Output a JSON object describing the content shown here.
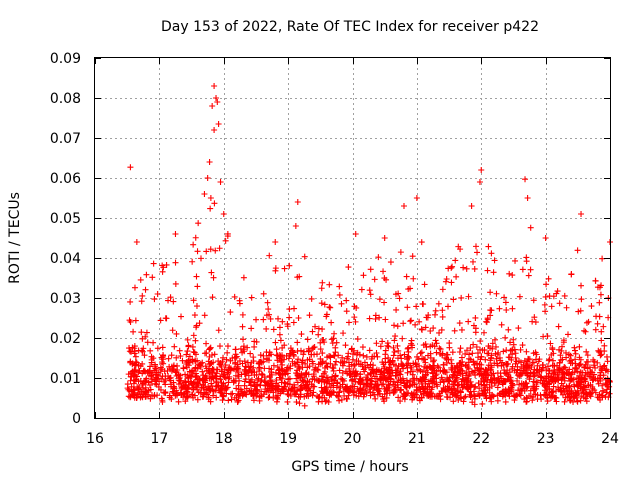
{
  "chart_data": {
    "type": "scatter",
    "title": "Day 153 of 2022, Rate Of TEC Index for receiver p422",
    "xlabel": "GPS time / hours",
    "ylabel": "ROTI / TECUs",
    "xlim": [
      16,
      24
    ],
    "ylim": [
      0,
      0.09
    ],
    "xticks": [
      "16",
      "17",
      "18",
      "19",
      "20",
      "21",
      "22",
      "23",
      "24"
    ],
    "xtick_values": [
      16,
      17,
      18,
      19,
      20,
      21,
      22,
      23,
      24
    ],
    "yticks": [
      "0",
      "0.01",
      "0.02",
      "0.03",
      "0.04",
      "0.05",
      "0.06",
      "0.07",
      "0.08",
      "0.09"
    ],
    "ytick_values": [
      0,
      0.01,
      0.02,
      0.03,
      0.04,
      0.05,
      0.06,
      0.07,
      0.08,
      0.09
    ],
    "grid": true,
    "marker": "+",
    "series": [
      {
        "name": "ROTI",
        "color": "#ff0000",
        "notable_points": [
          [
            16.55,
            0.0627
          ],
          [
            17.85,
            0.083
          ],
          [
            17.88,
            0.08
          ],
          [
            17.9,
            0.079
          ],
          [
            17.82,
            0.078
          ],
          [
            17.92,
            0.0735
          ],
          [
            17.85,
            0.072
          ],
          [
            17.78,
            0.064
          ],
          [
            17.75,
            0.06
          ],
          [
            17.7,
            0.056
          ],
          [
            17.8,
            0.055
          ],
          [
            17.95,
            0.059
          ],
          [
            18.0,
            0.051
          ],
          [
            19.15,
            0.054
          ],
          [
            19.12,
            0.048
          ],
          [
            21.0,
            0.055
          ],
          [
            21.85,
            0.053
          ],
          [
            22.0,
            0.062
          ],
          [
            21.98,
            0.059
          ],
          [
            22.68,
            0.0597
          ],
          [
            22.72,
            0.055
          ],
          [
            23.55,
            0.051
          ],
          [
            24.0,
            0.044
          ],
          [
            16.65,
            0.044
          ],
          [
            17.25,
            0.046
          ],
          [
            18.8,
            0.044
          ],
          [
            20.05,
            0.046
          ],
          [
            20.5,
            0.045
          ],
          [
            20.8,
            0.053
          ],
          [
            23.0,
            0.045
          ]
        ],
        "envelope": [
          [
            16.5,
            0.005,
            0.032
          ],
          [
            16.75,
            0.005,
            0.038
          ],
          [
            17.0,
            0.004,
            0.04
          ],
          [
            17.25,
            0.004,
            0.044
          ],
          [
            17.5,
            0.004,
            0.045
          ],
          [
            17.75,
            0.004,
            0.058
          ],
          [
            18.0,
            0.004,
            0.052
          ],
          [
            18.25,
            0.004,
            0.035
          ],
          [
            18.5,
            0.004,
            0.038
          ],
          [
            18.75,
            0.004,
            0.044
          ],
          [
            19.0,
            0.004,
            0.04
          ],
          [
            19.25,
            0.003,
            0.042
          ],
          [
            19.5,
            0.004,
            0.035
          ],
          [
            19.75,
            0.004,
            0.033
          ],
          [
            20.0,
            0.005,
            0.04
          ],
          [
            20.25,
            0.005,
            0.038
          ],
          [
            20.5,
            0.004,
            0.044
          ],
          [
            20.75,
            0.004,
            0.045
          ],
          [
            21.0,
            0.004,
            0.05
          ],
          [
            21.25,
            0.005,
            0.033
          ],
          [
            21.5,
            0.004,
            0.038
          ],
          [
            21.75,
            0.004,
            0.05
          ],
          [
            22.0,
            0.003,
            0.05
          ],
          [
            22.25,
            0.004,
            0.04
          ],
          [
            22.5,
            0.004,
            0.038
          ],
          [
            22.75,
            0.004,
            0.052
          ],
          [
            23.0,
            0.004,
            0.042
          ],
          [
            23.25,
            0.004,
            0.03
          ],
          [
            23.5,
            0.004,
            0.043
          ],
          [
            23.75,
            0.004,
            0.04
          ],
          [
            24.0,
            0.005,
            0.04
          ]
        ],
        "typical_range": [
          0.005,
          0.02
        ]
      }
    ]
  }
}
